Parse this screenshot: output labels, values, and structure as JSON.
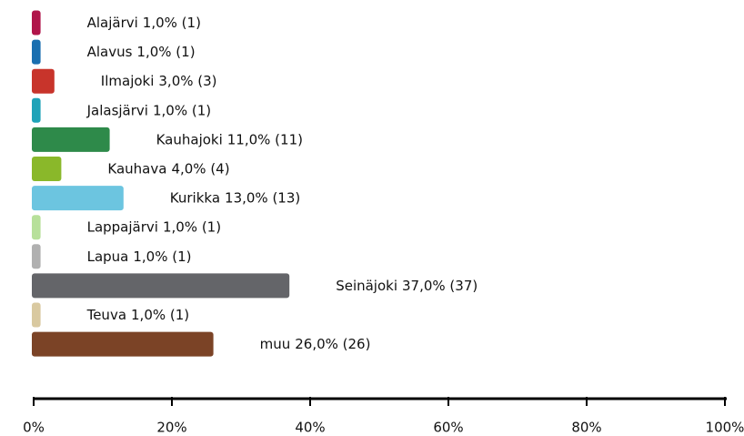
{
  "chart_data": {
    "type": "bar",
    "orientation": "horizontal",
    "categories": [
      "Alajärvi",
      "Alavus",
      "Ilmajoki",
      "Jalasjärvi",
      "Kauhajoki",
      "Kauhava",
      "Kurikka",
      "Lappajärvi",
      "Lapua",
      "Seinäjoki",
      "Teuva",
      "muu"
    ],
    "values": [
      1,
      1,
      3,
      1,
      11,
      4,
      13,
      1,
      1,
      37,
      1,
      26
    ],
    "value_labels": [
      "1,0% (1)",
      "1,0% (1)",
      "3,0% (3)",
      "1,0% (1)",
      "11,0% (11)",
      "4,0% (4)",
      "13,0% (13)",
      "1,0% (1)",
      "1,0% (1)",
      "37,0% (37)",
      "1,0% (1)",
      "26,0% (26)"
    ],
    "colors": [
      "#b0154a",
      "#1a6fb0",
      "#c8342b",
      "#1fa3b8",
      "#2e8a4a",
      "#8ab82a",
      "#6cc5e0",
      "#b7e09a",
      "#b0b0b0",
      "#646569",
      "#d9c9a0",
      "#7b4326"
    ],
    "xlim": [
      0,
      100
    ],
    "xticks": [
      {
        "value": 0,
        "label": "0%"
      },
      {
        "value": 20,
        "label": "20%"
      },
      {
        "value": 40,
        "label": "40%"
      },
      {
        "value": 60,
        "label": "60%"
      },
      {
        "value": 80,
        "label": "80%"
      },
      {
        "value": 100,
        "label": "100%"
      }
    ]
  }
}
